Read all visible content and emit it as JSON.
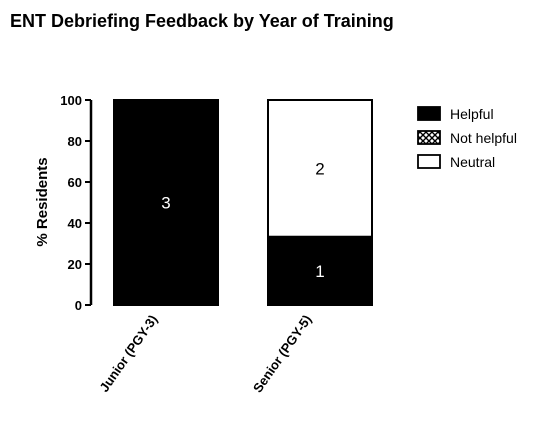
{
  "chart_data": {
    "type": "bar",
    "stacked": true,
    "title": "ENT Debriefing Feedback by Year of Training",
    "ylabel": "% Residents",
    "xlabel": "",
    "ylim": [
      0,
      100
    ],
    "yticks": [
      0,
      20,
      40,
      60,
      80,
      100
    ],
    "categories": [
      "Junior (PGY-3)",
      "Senior (PGY-5)"
    ],
    "series": [
      {
        "name": "Helpful",
        "values": [
          100,
          33.3
        ],
        "counts": [
          "3",
          "1"
        ],
        "fill": "#000000",
        "label_color": "#ffffff"
      },
      {
        "name": "Not helpful",
        "values": [
          0,
          0
        ],
        "counts": [
          "",
          ""
        ],
        "fill": "crosshatch",
        "label_color": "#000000"
      },
      {
        "name": "Neutral",
        "values": [
          0,
          66.7
        ],
        "counts": [
          "",
          "2"
        ],
        "fill": "#ffffff",
        "label_color": "#000000"
      }
    ],
    "legend": "right",
    "grid": false
  }
}
